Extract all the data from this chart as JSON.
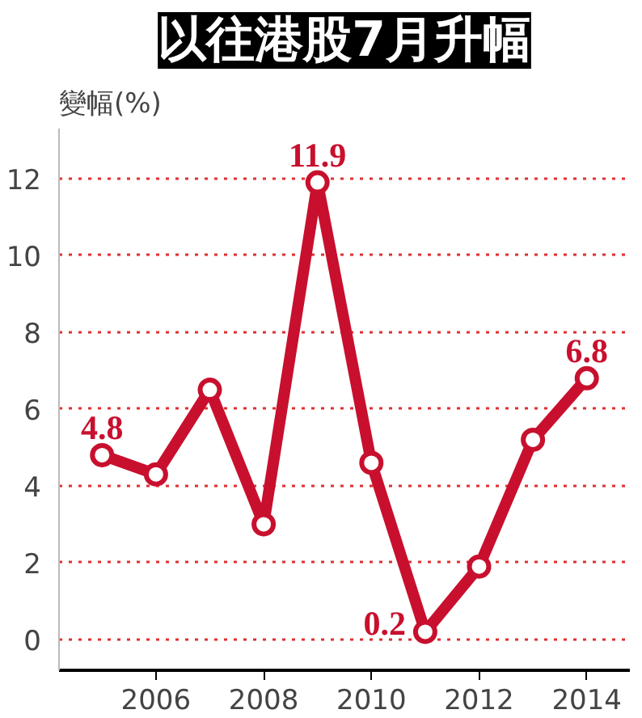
{
  "chart_data": {
    "type": "line",
    "title": "以往港股7月升幅",
    "ylabel": "變幅(%)",
    "x": [
      2005,
      2006,
      2007,
      2008,
      2009,
      2010,
      2011,
      2012,
      2013,
      2014
    ],
    "series": [
      {
        "color": "#c8102e",
        "values": [
          4.8,
          4.3,
          6.5,
          3.0,
          11.9,
          4.6,
          0.2,
          1.9,
          5.2,
          6.8
        ],
        "value_labels": [
          "4.8",
          null,
          null,
          null,
          "11.9",
          null,
          "0.2",
          null,
          null,
          "6.8"
        ]
      }
    ],
    "xlim": [
      2004.2,
      2014.8
    ],
    "ylim": [
      -0.8,
      13.3
    ],
    "xticks": [
      2006,
      2008,
      2010,
      2012,
      2014
    ],
    "yticks": [
      0,
      2,
      4,
      6,
      8,
      10,
      12
    ],
    "grid": "y",
    "marker": "circle",
    "line_style": "solid"
  }
}
